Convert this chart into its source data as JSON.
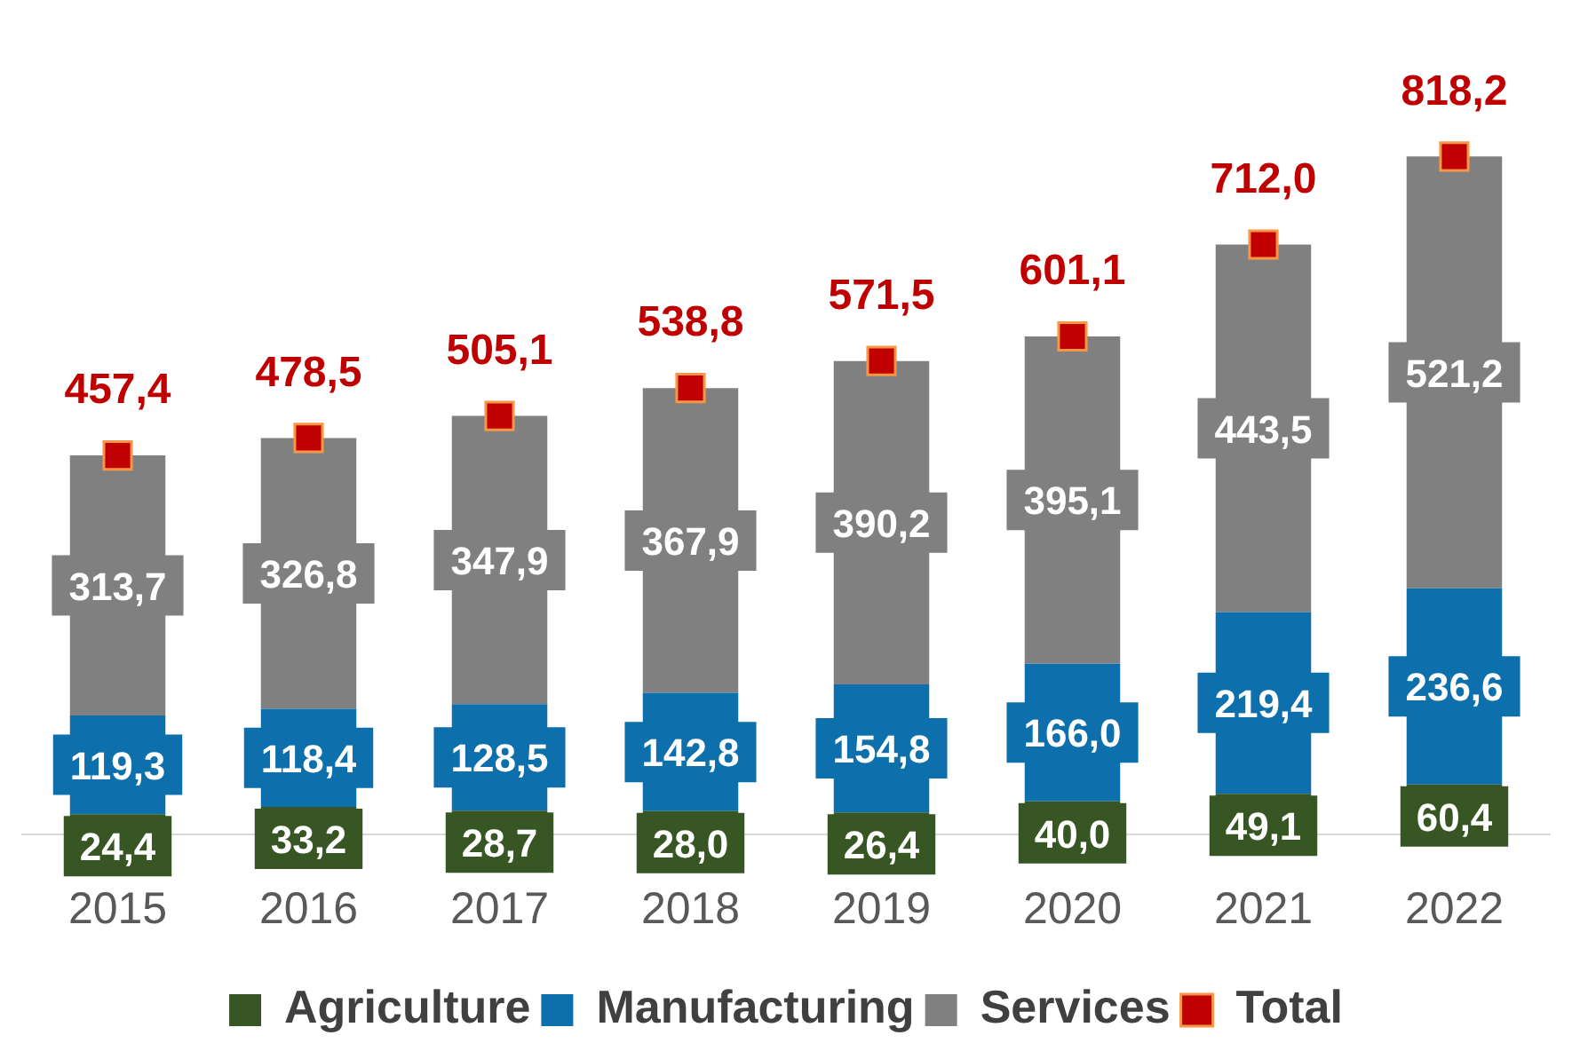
{
  "chart_data": {
    "type": "bar",
    "stacked": true,
    "categories": [
      "2015",
      "2016",
      "2017",
      "2018",
      "2019",
      "2020",
      "2021",
      "2022"
    ],
    "series": [
      {
        "name": "Agriculture",
        "color": "#375623",
        "values": [
          24.4,
          33.2,
          28.7,
          28.0,
          26.4,
          40.0,
          49.1,
          60.4
        ],
        "value_labels": [
          "24,4",
          "33,2",
          "28,7",
          "28,0",
          "26,4",
          "40,0",
          "49,1",
          "60,4"
        ]
      },
      {
        "name": "Manufacturing",
        "color": "#0e6fad",
        "values": [
          119.3,
          118.4,
          128.5,
          142.8,
          154.8,
          166.0,
          219.4,
          236.6
        ],
        "value_labels": [
          "119,3",
          "118,4",
          "128,5",
          "142,8",
          "154,8",
          "166,0",
          "219,4",
          "236,6"
        ]
      },
      {
        "name": "Services",
        "color": "#808080",
        "values": [
          313.7,
          326.8,
          347.9,
          367.9,
          390.2,
          395.1,
          443.5,
          521.2
        ],
        "value_labels": [
          "313,7",
          "326,8",
          "347,9",
          "367,9",
          "390,2",
          "395,1",
          "443,5",
          "521,2"
        ]
      },
      {
        "name": "Total",
        "type": "scatter",
        "color": "#c00000",
        "values": [
          457.4,
          478.5,
          505.1,
          538.8,
          571.5,
          601.1,
          712.0,
          818.2
        ],
        "value_labels": [
          "457,4",
          "478,5",
          "505,1",
          "538,8",
          "571,5",
          "601,1",
          "712,0",
          "818,2"
        ]
      }
    ],
    "marker": "square",
    "legend": "bottom",
    "tick_labels": "x",
    "grid": false
  }
}
